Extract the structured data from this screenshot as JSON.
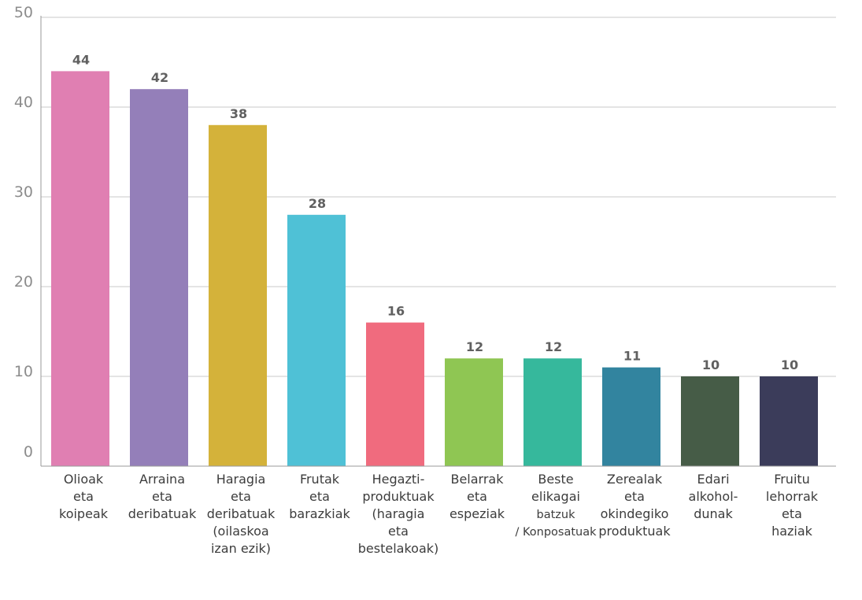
{
  "chart_data": {
    "type": "bar",
    "categories": [
      {
        "lines": [
          "Olioak",
          "eta",
          "koipeak"
        ]
      },
      {
        "lines": [
          "Arraina",
          "eta",
          "deribatuak"
        ]
      },
      {
        "lines": [
          "Haragia",
          "eta",
          "deribatuak",
          "(oilaskoa",
          "izan ezik)"
        ]
      },
      {
        "lines": [
          "Frutak",
          "eta",
          "barazkiak"
        ]
      },
      {
        "lines": [
          "Hegazti-",
          "produktuak",
          "(haragia",
          "eta",
          "bestelakoak)"
        ]
      },
      {
        "lines": [
          "Belarrak",
          "eta",
          "espeziak"
        ]
      },
      {
        "lines": [
          "Beste",
          "elikagai",
          "batzuk",
          "/ Konposatuak"
        ]
      },
      {
        "lines": [
          "Zerealak",
          "eta",
          "okindegiko",
          "produktuak"
        ]
      },
      {
        "lines": [
          "Edari",
          "alkohol-",
          "dunak"
        ]
      },
      {
        "lines": [
          "Fruitu",
          "lehorrak",
          "eta",
          "haziak"
        ]
      }
    ],
    "values": [
      44,
      42,
      38,
      28,
      16,
      12,
      12,
      11,
      10,
      10
    ],
    "value_labels": [
      "44",
      "42",
      "38",
      "28",
      "16",
      "12",
      "12",
      "11",
      "10",
      "10"
    ],
    "colors": [
      "#e07fb2",
      "#947fb9",
      "#d4b23a",
      "#4fc1d6",
      "#f06b7e",
      "#8fc653",
      "#36b89c",
      "#32849f",
      "#465c47",
      "#3b3c5a"
    ],
    "yticks": [
      "0",
      "10",
      "20",
      "30",
      "40",
      "50"
    ],
    "ylim": [
      0,
      50
    ],
    "grid": true,
    "title": "",
    "xlabel": "",
    "ylabel": ""
  }
}
